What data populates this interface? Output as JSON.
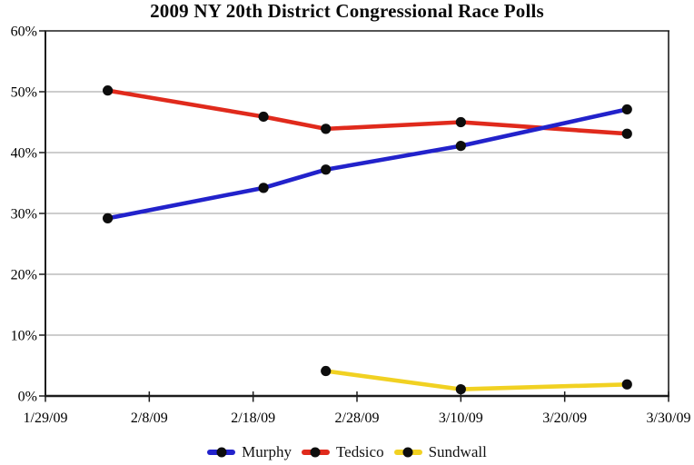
{
  "chart_data": {
    "type": "line",
    "title": "2009 NY 20th District Congressional Race Polls",
    "x_axis": {
      "unit": "date",
      "min_day": 0,
      "max_day": 60,
      "ticks": [
        {
          "label": "1/29/09",
          "day": 0
        },
        {
          "label": "2/8/09",
          "day": 10
        },
        {
          "label": "2/18/09",
          "day": 20
        },
        {
          "label": "2/28/09",
          "day": 30
        },
        {
          "label": "3/10/09",
          "day": 40
        },
        {
          "label": "3/20/09",
          "day": 50
        },
        {
          "label": "3/30/09",
          "day": 60
        }
      ]
    },
    "y_axis": {
      "unit": "percent",
      "min": 0,
      "max": 60,
      "step": 10,
      "ticks": [
        {
          "label": "60%",
          "value": 60
        },
        {
          "label": "50%",
          "value": 50
        },
        {
          "label": "40%",
          "value": 40
        },
        {
          "label": "30%",
          "value": 30
        },
        {
          "label": "20%",
          "value": 20
        },
        {
          "label": "10%",
          "value": 10
        },
        {
          "label": "0%",
          "value": 0
        }
      ]
    },
    "grid": "horizontal-only",
    "legend_position": "bottom-center",
    "series": [
      {
        "name": "Murphy",
        "color": "#2222cb",
        "days": [
          6,
          21,
          27,
          40,
          56
        ],
        "values": [
          29.2,
          34.2,
          37.2,
          41.1,
          47.1
        ]
      },
      {
        "name": "Tedsico",
        "color": "#e02a1c",
        "days": [
          6,
          21,
          27,
          40,
          56
        ],
        "values": [
          50.2,
          45.9,
          43.9,
          45.0,
          43.1
        ]
      },
      {
        "name": "Sundwall",
        "color": "#f1d122",
        "days": [
          27,
          40,
          56
        ],
        "values": [
          4.1,
          1.1,
          1.9
        ]
      }
    ],
    "draw_order": [
      2,
      1,
      0
    ],
    "colors": {
      "grid": "#9b9b9b",
      "axis": "#1c1c1c",
      "marker": "#0d0d0d",
      "text": "#000000"
    }
  }
}
